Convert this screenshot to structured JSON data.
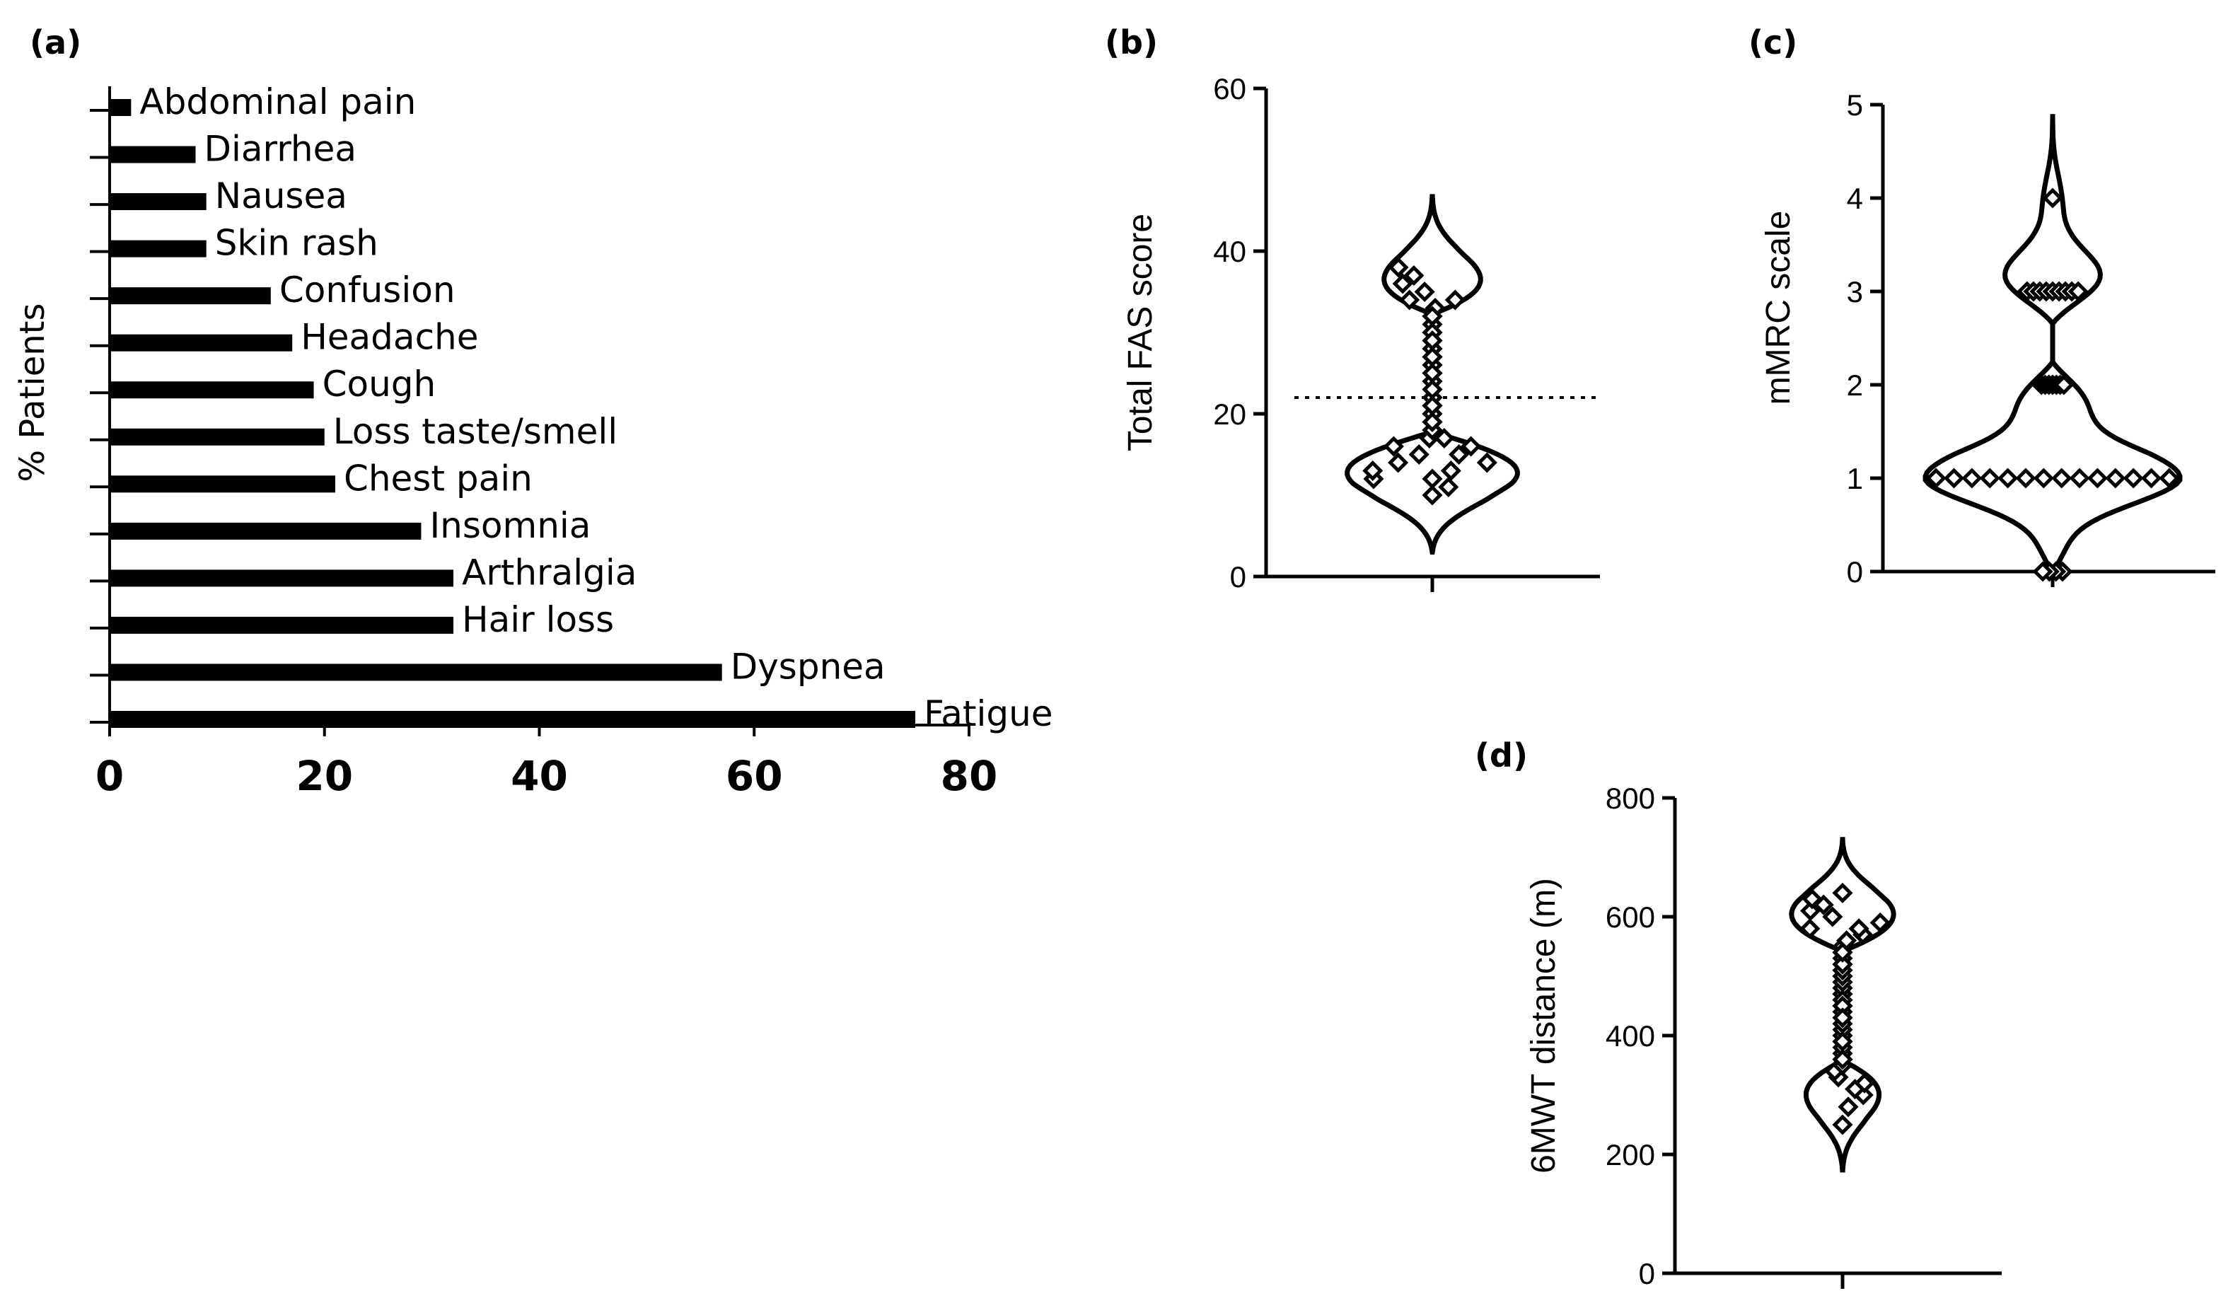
{
  "chart_data": [
    {
      "panel": "(a)",
      "type": "bar",
      "orientation": "horizontal",
      "ylabel": "% Patients",
      "xlim": [
        0,
        80
      ],
      "xticks": [
        0,
        20,
        40,
        60,
        80
      ],
      "categories": [
        "Abdominal pain",
        "Diarrhea",
        "Nausea",
        "Skin rash",
        "Confusion",
        "Headache",
        "Cough",
        "Loss taste/smell",
        "Chest pain",
        "Insomnia",
        "Arthralgia",
        "Hair loss",
        "Dyspnea",
        "Fatigue"
      ],
      "values": [
        2,
        8,
        9,
        9,
        15,
        17,
        19,
        20,
        21,
        29,
        32,
        32,
        57,
        75
      ]
    },
    {
      "panel": "(b)",
      "type": "violin",
      "ylabel": "Total FAS score",
      "ylim": [
        0,
        60
      ],
      "yticks": [
        0,
        20,
        40,
        60
      ],
      "range": [
        3,
        47
      ],
      "median": 22,
      "points": [
        12,
        13,
        14,
        15,
        16,
        17,
        18,
        19,
        20,
        21,
        22,
        23,
        24,
        25,
        26,
        27,
        28,
        29,
        30,
        31,
        32,
        33,
        34,
        35,
        36,
        37,
        38,
        10,
        11,
        12,
        14,
        16,
        18,
        20,
        22,
        24,
        26,
        28,
        30,
        32,
        34,
        19,
        21,
        23,
        25,
        17,
        15,
        13,
        27,
        29
      ]
    },
    {
      "panel": "(c)",
      "type": "violin",
      "ylabel": "mMRC scale",
      "ylim": [
        0,
        5
      ],
      "yticks": [
        0,
        1,
        2,
        3,
        4,
        5
      ],
      "range": [
        0,
        4.9
      ],
      "points": [
        0,
        0,
        0,
        0,
        1,
        1,
        1,
        1,
        1,
        1,
        1,
        1,
        1,
        1,
        1,
        1,
        1,
        1,
        2,
        2,
        2,
        2,
        2,
        2,
        2,
        3,
        3,
        3,
        3,
        3,
        3,
        3,
        3,
        3,
        4
      ]
    },
    {
      "panel": "(d)",
      "type": "violin",
      "ylabel": "6MWT distance (m)",
      "ylim": [
        0,
        800
      ],
      "yticks": [
        0,
        200,
        400,
        600,
        800
      ],
      "range": [
        170,
        730
      ],
      "points": [
        250,
        280,
        300,
        310,
        320,
        330,
        340,
        350,
        360,
        370,
        380,
        390,
        400,
        410,
        420,
        430,
        440,
        450,
        460,
        470,
        480,
        490,
        500,
        510,
        520,
        530,
        540,
        550,
        560,
        570,
        580,
        590,
        600,
        610,
        620,
        630,
        640,
        470,
        480,
        490,
        460,
        500,
        510,
        450,
        520,
        430,
        540,
        360,
        390,
        580
      ]
    }
  ]
}
